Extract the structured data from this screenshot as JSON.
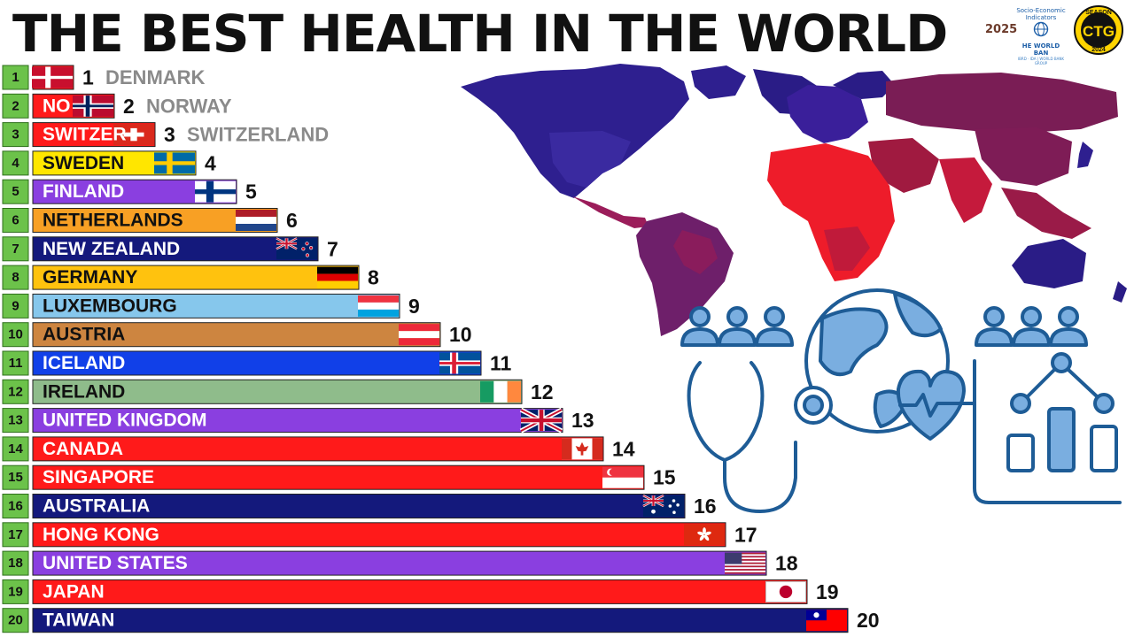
{
  "title": "THE BEST HEALTH IN THE WORLD",
  "year": "2025",
  "logo_worldbank": {
    "line1": "Socio-Economic",
    "line2": "Indicators",
    "name": "HE WORLD BAN",
    "sub": "IBRD · IDA | WORLD BANK GROUP"
  },
  "logo_season": {
    "top": "SEASON",
    "mid": "CTG",
    "bottom": "2024"
  },
  "chart_data": {
    "type": "bar",
    "orientation": "horizontal",
    "title": "THE BEST HEALTH IN THE WORLD",
    "year": "2025",
    "xlabel": "",
    "ylabel": "",
    "grid": false,
    "legend": "none",
    "categories": [
      "DENMARK",
      "NORWAY",
      "SWITZERLAND",
      "SWEDEN",
      "FINLAND",
      "NETHERLANDS",
      "NEW ZEALAND",
      "GERMANY",
      "LUXEMBOURG",
      "AUSTRIA",
      "ICELAND",
      "IRELAND",
      "UNITED KINGDOM",
      "CANADA",
      "SINGAPORE",
      "AUSTRALIA",
      "HONG KONG",
      "UNITED STATES",
      "JAPAN",
      "TAIWAN"
    ],
    "ranks": [
      "1",
      "2",
      "3",
      "4",
      "5",
      "6",
      "7",
      "8",
      "9",
      "10",
      "11",
      "12",
      "13",
      "14",
      "15",
      "16",
      "17",
      "18",
      "19",
      "20"
    ],
    "values": [
      1,
      2,
      3,
      4,
      5,
      6,
      7,
      8,
      9,
      10,
      11,
      12,
      13,
      14,
      15,
      16,
      17,
      18,
      19,
      20
    ],
    "value_labels": [
      "1",
      "2",
      "3",
      "4",
      "5",
      "6",
      "7",
      "8",
      "9",
      "10",
      "11",
      "12",
      "13",
      "14",
      "15",
      "16",
      "17",
      "18",
      "19",
      "20"
    ],
    "bar_labels": [
      "",
      "NO",
      "SWITZER",
      "SWEDEN",
      "FINLAND",
      "NETHERLANDS",
      "NEW ZEALAND",
      "GERMANY",
      "LUXEMBOURG",
      "AUSTRIA",
      "ICELAND",
      "IRELAND",
      "UNITED KINGDOM",
      "CANADA",
      "SINGAPORE",
      "AUSTRALIA",
      "HONG KONG",
      "UNITED STATES",
      "JAPAN",
      "TAIWAN"
    ],
    "outside_labels": [
      "DENMARK",
      "NORWAY",
      "SWITZERLAND",
      "",
      "",
      "",
      "",
      "",
      "",
      "",
      "",
      "",
      "",
      "",
      "",
      "",
      "",
      "",
      "",
      ""
    ],
    "colors": [
      "#ff1a1a",
      "#ff1a1a",
      "#ff1a1a",
      "#ffe600",
      "#8a3fe0",
      "#f8a024",
      "#14197c",
      "#ffc20e",
      "#86c7ec",
      "#cd8540",
      "#1140e8",
      "#8fbc8b",
      "#8a3fe0",
      "#ff1a1a",
      "#ff1a1a",
      "#14197c",
      "#ff1a1a",
      "#8a3fe0",
      "#ff1a1a",
      "#14197c"
    ],
    "label_colors": [
      "#ffffff",
      "#ffffff",
      "#ffffff",
      "#111111",
      "#ffffff",
      "#111111",
      "#ffffff",
      "#111111",
      "#111111",
      "#111111",
      "#ffffff",
      "#111111",
      "#ffffff",
      "#ffffff",
      "#ffffff",
      "#ffffff",
      "#ffffff",
      "#ffffff",
      "#ffffff",
      "#ffffff"
    ],
    "flags": [
      "denmark",
      "norway",
      "switzerland",
      "sweden",
      "finland",
      "netherlands",
      "new-zealand",
      "germany",
      "luxembourg",
      "austria",
      "iceland",
      "ireland",
      "united-kingdom",
      "canada",
      "singapore",
      "australia",
      "hong-kong",
      "united-states",
      "japan",
      "taiwan"
    ],
    "xlim": [
      0,
      20
    ]
  }
}
